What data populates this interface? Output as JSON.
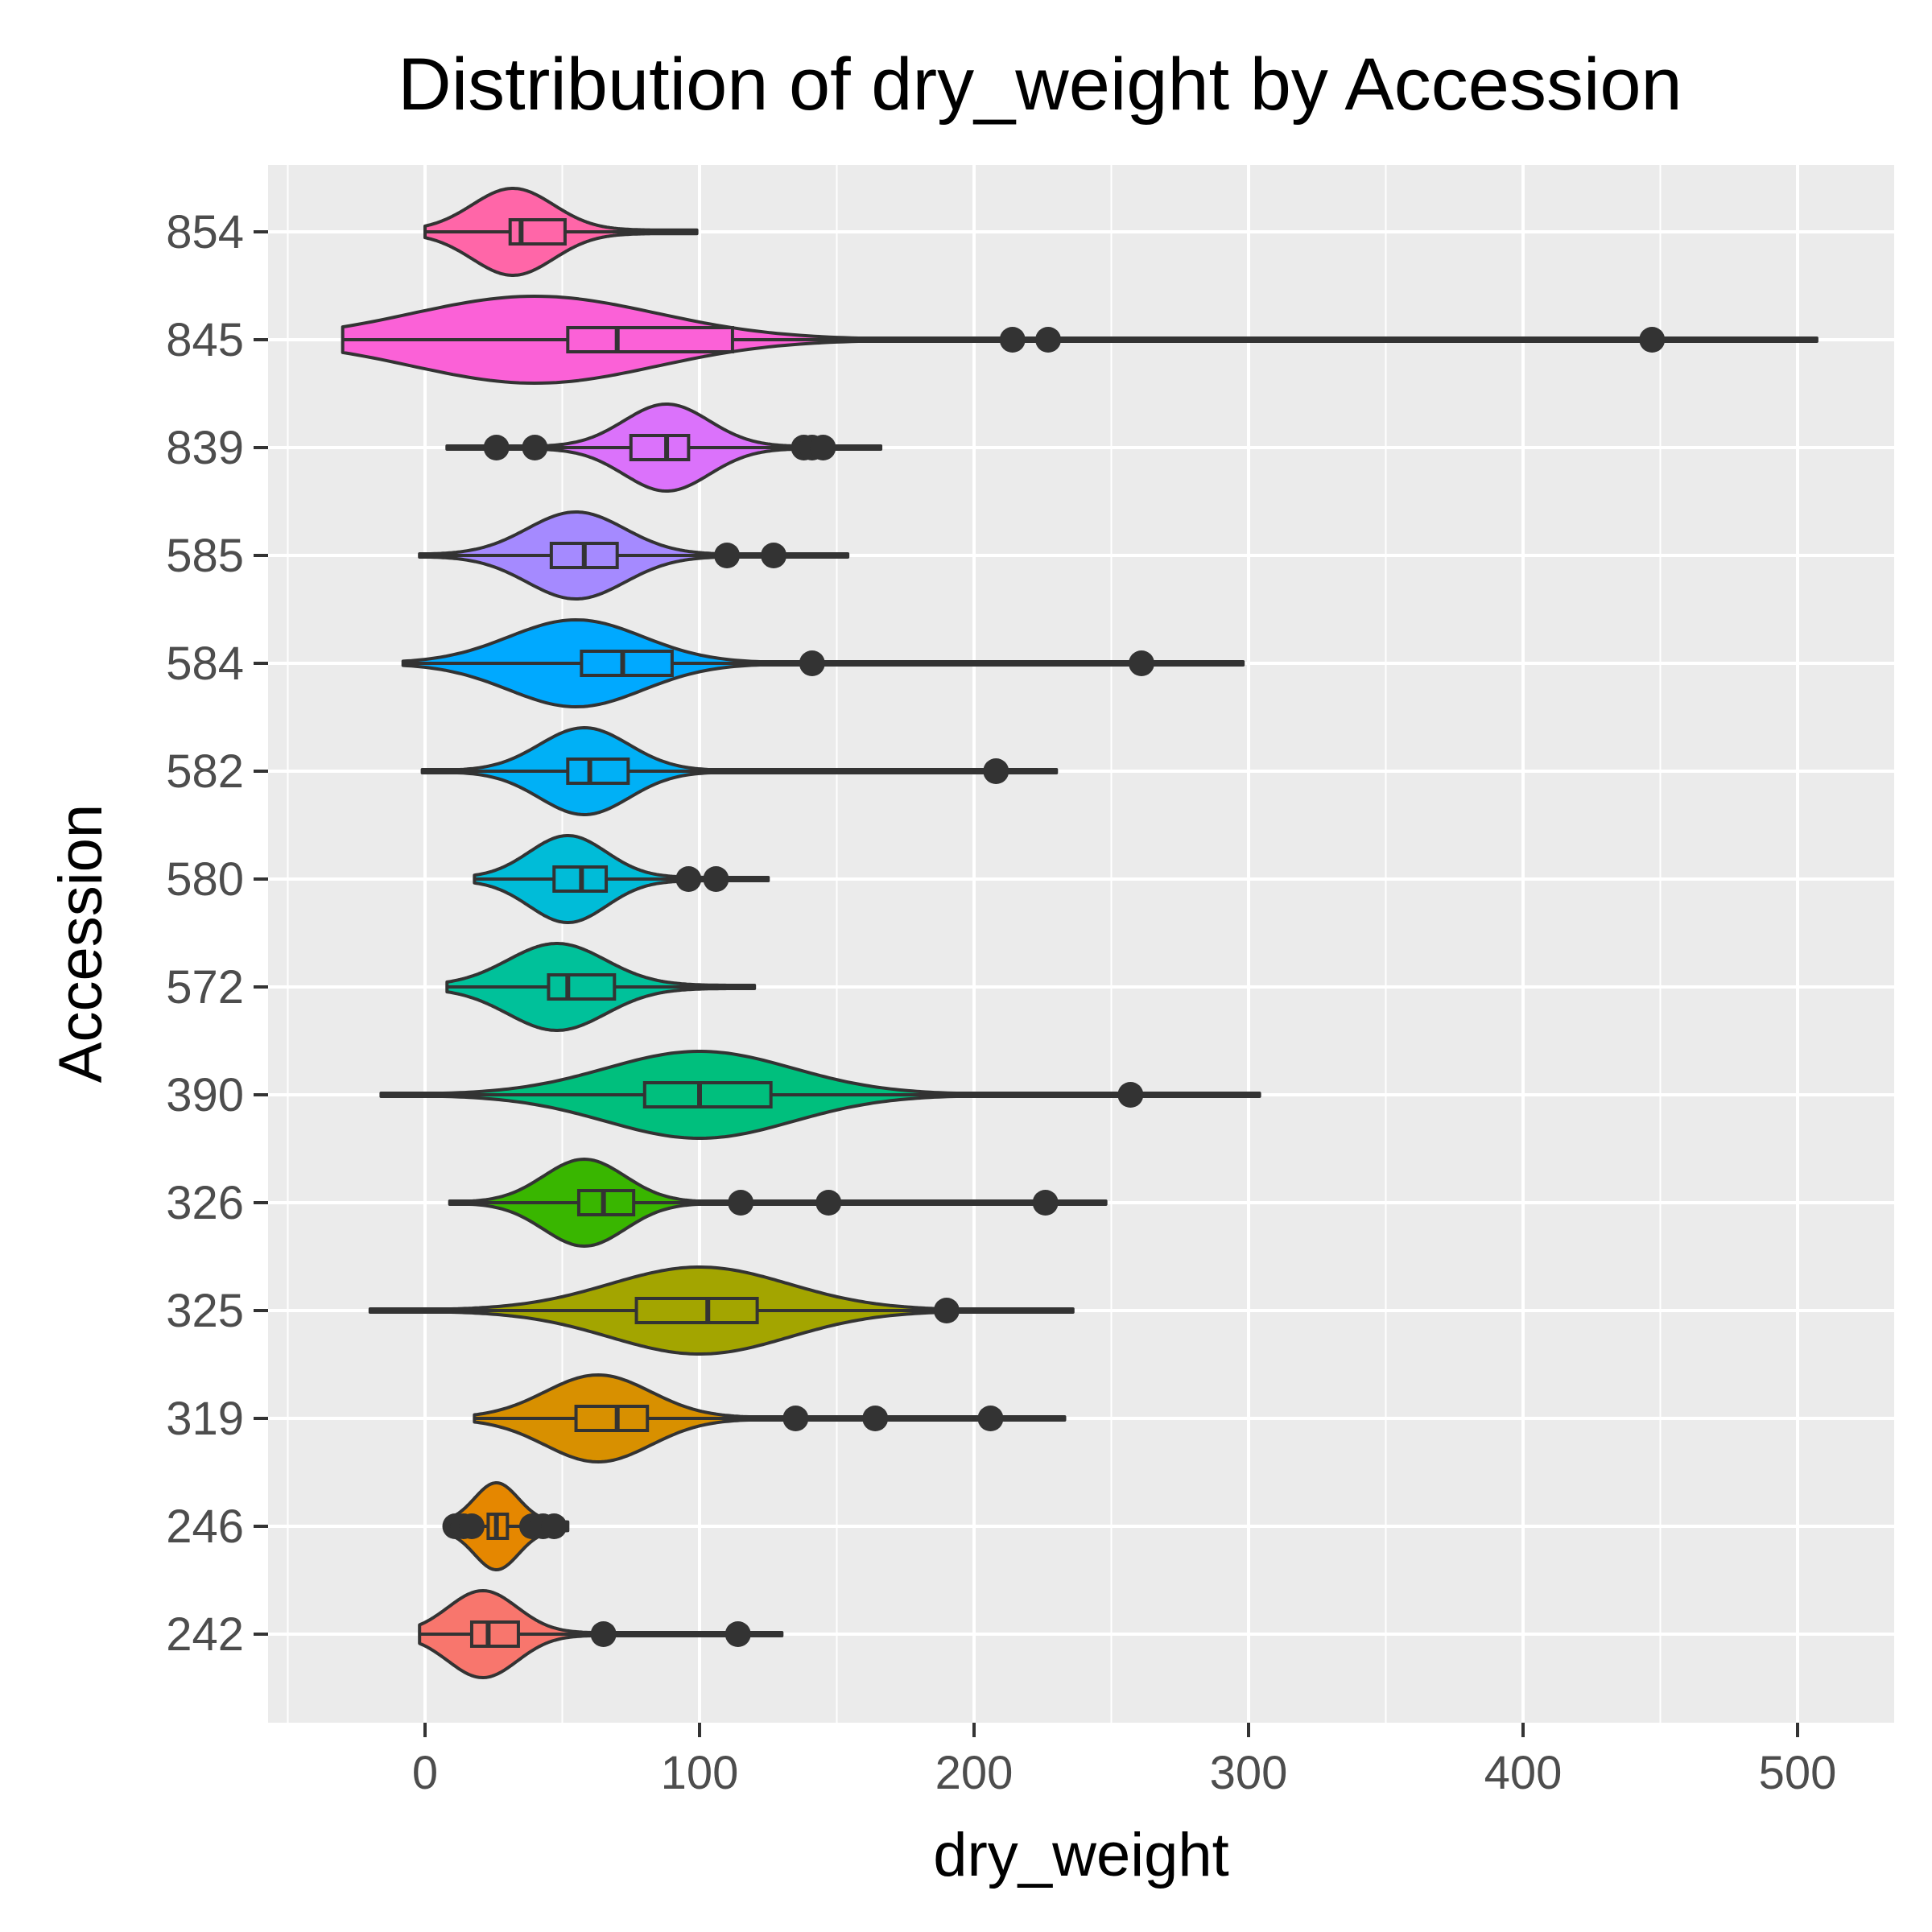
{
  "chart_data": {
    "type": "violin",
    "title": "Distribution of dry_weight by Accession",
    "xlabel": "dry_weight",
    "ylabel": "Accession",
    "xlim": [
      -5.5,
      53.5
    ],
    "x_ticks": [
      0,
      100,
      200,
      300,
      400,
      500
    ],
    "x_tick_labels": [
      "0",
      "100",
      "200",
      "300",
      "400",
      "500"
    ],
    "grid": true,
    "legend": "none",
    "categories": [
      "854",
      "845",
      "839",
      "585",
      "584",
      "582",
      "580",
      "572",
      "390",
      "326",
      "325",
      "319",
      "246",
      "242"
    ],
    "series": [
      {
        "category": "854",
        "color": "#FF66A8",
        "violin_range": [
          0,
          99
        ],
        "mode": 32,
        "q1": 31,
        "median": 35,
        "q3": 51,
        "whisker": [
          0,
          99
        ],
        "outliers": []
      },
      {
        "category": "845",
        "color": "#FB61D7",
        "violin_range": [
          -30,
          507
        ],
        "mode": 40,
        "q1": 52,
        "median": 70,
        "q3": 112,
        "whisker": [
          -30,
          507
        ],
        "outliers": [
          214,
          227,
          447
        ]
      },
      {
        "category": "839",
        "color": "#DB72FB",
        "violin_range": [
          8,
          166
        ],
        "mode": 88,
        "q1": 75,
        "median": 88,
        "q3": 96,
        "whisker": [
          8,
          166
        ],
        "outliers": [
          26,
          40,
          138,
          141,
          145
        ]
      },
      {
        "category": "585",
        "color": "#A58AFF",
        "violin_range": [
          -2,
          154
        ],
        "mode": 55,
        "q1": 46,
        "median": 58,
        "q3": 70,
        "whisker": [
          -2,
          154
        ],
        "outliers": [
          110,
          127
        ]
      },
      {
        "category": "584",
        "color": "#00A9FF",
        "violin_range": [
          -8,
          298
        ],
        "mode": 55,
        "q1": 57,
        "median": 72,
        "q3": 90,
        "whisker": [
          -8,
          298
        ],
        "outliers": [
          141,
          261
        ]
      },
      {
        "category": "582",
        "color": "#00B0F6",
        "violin_range": [
          -1,
          230
        ],
        "mode": 58,
        "q1": 52,
        "median": 60,
        "q3": 74,
        "whisker": [
          -1,
          230
        ],
        "outliers": [
          208
        ]
      },
      {
        "category": "580",
        "color": "#00BCD8",
        "violin_range": [
          18,
          125
        ],
        "mode": 52,
        "q1": 47,
        "median": 57,
        "q3": 66,
        "whisker": [
          18,
          125
        ],
        "outliers": [
          96,
          106
        ]
      },
      {
        "category": "572",
        "color": "#00C19A",
        "violin_range": [
          8,
          120
        ],
        "mode": 48,
        "q1": 45,
        "median": 52,
        "q3": 69,
        "whisker": [
          8,
          120
        ],
        "outliers": []
      },
      {
        "category": "390",
        "color": "#00BF7D",
        "violin_range": [
          -16,
          304
        ],
        "mode": 100,
        "q1": 80,
        "median": 100,
        "q3": 126,
        "whisker": [
          -16,
          304
        ],
        "outliers": [
          257
        ]
      },
      {
        "category": "326",
        "color": "#39B600",
        "violin_range": [
          9,
          248
        ],
        "mode": 58,
        "q1": 56,
        "median": 65,
        "q3": 76,
        "whisker": [
          9,
          248
        ],
        "outliers": [
          115,
          147,
          226
        ]
      },
      {
        "category": "325",
        "color": "#A3A500",
        "violin_range": [
          -20,
          236
        ],
        "mode": 100,
        "q1": 77,
        "median": 103,
        "q3": 121,
        "whisker": [
          -20,
          236
        ],
        "outliers": [
          190
        ]
      },
      {
        "category": "319",
        "color": "#D89000",
        "violin_range": [
          18,
          233
        ],
        "mode": 63,
        "q1": 55,
        "median": 70,
        "q3": 81,
        "whisker": [
          18,
          233
        ],
        "outliers": [
          135,
          164,
          206
        ]
      },
      {
        "category": "246",
        "color": "#E58700",
        "violin_range": [
          10,
          52
        ],
        "mode": 26,
        "q1": 23,
        "median": 26,
        "q3": 30,
        "whisker": [
          10,
          52
        ],
        "outliers": [
          11,
          14,
          17,
          39,
          43,
          47
        ]
      },
      {
        "category": "242",
        "color": "#F8766D",
        "violin_range": [
          -2,
          130
        ],
        "mode": 21,
        "q1": 17,
        "median": 23,
        "q3": 34,
        "whisker": [
          -2,
          130
        ],
        "outliers": [
          65,
          114
        ]
      }
    ]
  }
}
